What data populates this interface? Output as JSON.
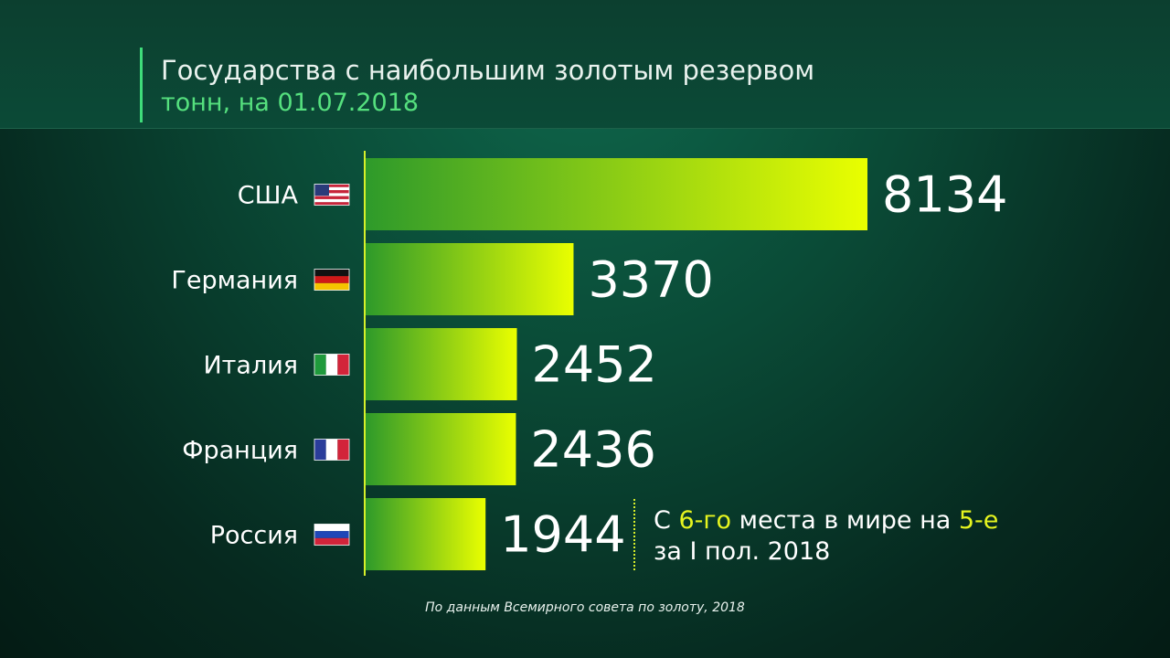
{
  "chart_data": {
    "type": "bar",
    "orientation": "horizontal",
    "title": "Государства с наибольшим золотым резервом",
    "subtitle": "тонн, на 01.07.2018",
    "categories": [
      "США",
      "Германия",
      "Италия",
      "Франция",
      "Россия"
    ],
    "values": [
      8134,
      3370,
      2452,
      2436,
      1944
    ],
    "data_labels": [
      "8134",
      "3370",
      "2452",
      "2436",
      "1944"
    ],
    "flags": [
      "usa-flag-icon",
      "germany-flag-icon",
      "italy-flag-icon",
      "france-flag-icon",
      "russia-flag-icon"
    ],
    "xlim": [
      0,
      8134
    ],
    "grid": false,
    "colors": {
      "bar_start": "#2e9a2a",
      "bar_end": "#eaff00",
      "axis": "#d7f02a",
      "label": "#ffffff"
    }
  },
  "note": {
    "part1": "С ",
    "rank_from": "6-го",
    "part2": " места в мире на ",
    "rank_to": "5-е",
    "line2": "за I пол. 2018"
  },
  "source": "По данным Всемирного совета по золоту, 2018"
}
